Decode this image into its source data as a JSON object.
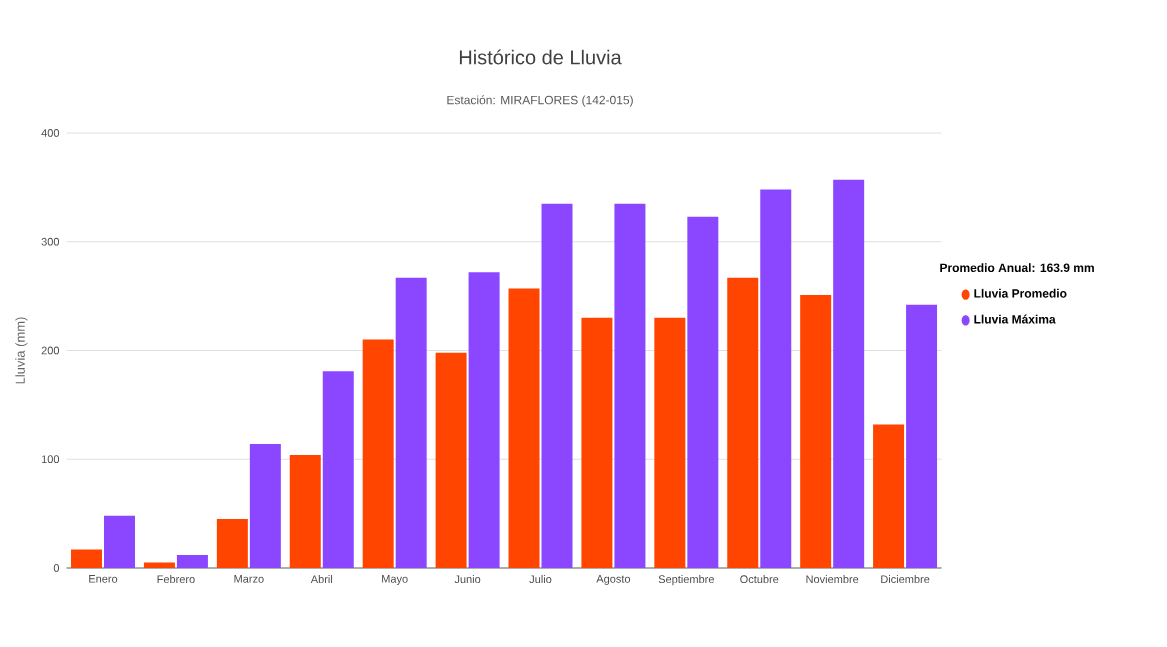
{
  "chart_data": {
    "type": "bar",
    "title": "Histórico de Lluvia",
    "subtitle": "Estación: MIRAFLORES (142-015)",
    "ylabel": "Lluvia (mm)",
    "legend_title": "Promedio Anual: 163.9 mm",
    "categories": [
      "Enero",
      "Febrero",
      "Marzo",
      "Abril",
      "Mayo",
      "Junio",
      "Julio",
      "Agosto",
      "Septiembre",
      "Octubre",
      "Noviembre",
      "Diciembre"
    ],
    "series": [
      {
        "name": "Lluvia Promedio",
        "color": "#ff4500",
        "values": [
          17,
          5,
          45,
          104,
          210,
          198,
          257,
          230,
          230,
          267,
          251,
          132
        ]
      },
      {
        "name": "Lluvia Máxima",
        "color": "#8a47ff",
        "values": [
          48,
          12,
          114,
          181,
          267,
          272,
          335,
          335,
          323,
          348,
          357,
          242
        ]
      }
    ],
    "ylim": [
      0,
      400
    ],
    "yticks": [
      0,
      100,
      200,
      300,
      400
    ],
    "grid": "y",
    "legend": "right"
  }
}
